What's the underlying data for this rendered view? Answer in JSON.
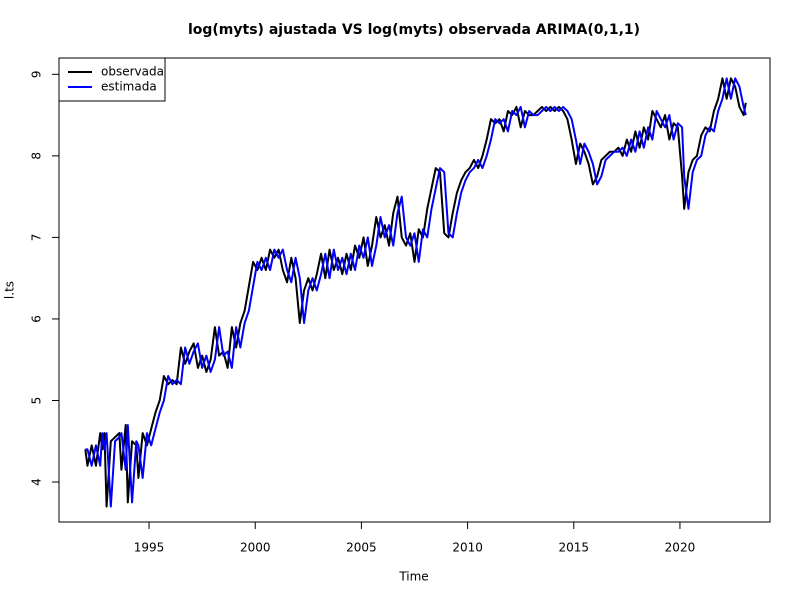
{
  "chart_data": {
    "type": "line",
    "title": "log(myts) ajustada VS log(myts) observada ARIMA(0,1,1)",
    "x_label": "Time",
    "y_label": "l.ts",
    "xlim": [
      1990.76,
      2024.24
    ],
    "ylim": [
      3.51,
      9.2
    ],
    "xticks": [
      1995,
      2000,
      2005,
      2010,
      2015,
      2020
    ],
    "yticks": [
      4,
      5,
      6,
      7,
      8,
      9
    ],
    "grid": false,
    "legend_position": "topleft",
    "x": [
      1992.0,
      1992.1,
      1992.3,
      1992.5,
      1992.7,
      1992.8,
      1992.9,
      1993.0,
      1993.2,
      1993.4,
      1993.6,
      1993.7,
      1993.9,
      1994.0,
      1994.2,
      1994.4,
      1994.5,
      1994.7,
      1994.9,
      1995.1,
      1995.3,
      1995.5,
      1995.7,
      1995.9,
      1996.1,
      1996.3,
      1996.5,
      1996.7,
      1996.9,
      1997.1,
      1997.3,
      1997.5,
      1997.7,
      1997.9,
      1998.1,
      1998.3,
      1998.5,
      1998.7,
      1998.9,
      1999.1,
      1999.3,
      1999.5,
      1999.7,
      1999.9,
      2000.1,
      2000.3,
      2000.5,
      2000.7,
      2000.9,
      2001.1,
      2001.3,
      2001.5,
      2001.7,
      2001.9,
      2002.1,
      2002.3,
      2002.5,
      2002.7,
      2002.9,
      2003.1,
      2003.3,
      2003.5,
      2003.7,
      2003.9,
      2004.1,
      2004.3,
      2004.5,
      2004.7,
      2004.9,
      2005.1,
      2005.3,
      2005.5,
      2005.7,
      2005.9,
      2006.1,
      2006.3,
      2006.5,
      2006.7,
      2006.9,
      2007.1,
      2007.3,
      2007.5,
      2007.7,
      2007.9,
      2008.1,
      2008.3,
      2008.5,
      2008.7,
      2008.9,
      2009.1,
      2009.3,
      2009.5,
      2009.7,
      2009.9,
      2010.1,
      2010.3,
      2010.5,
      2010.7,
      2010.9,
      2011.1,
      2011.3,
      2011.5,
      2011.7,
      2011.9,
      2012.1,
      2012.3,
      2012.5,
      2012.7,
      2012.9,
      2013.1,
      2013.3,
      2013.5,
      2013.7,
      2013.9,
      2014.1,
      2014.3,
      2014.5,
      2014.7,
      2014.9,
      2015.1,
      2015.3,
      2015.5,
      2015.7,
      2015.9,
      2016.1,
      2016.3,
      2016.5,
      2016.7,
      2016.9,
      2017.1,
      2017.3,
      2017.5,
      2017.7,
      2017.9,
      2018.1,
      2018.3,
      2018.5,
      2018.7,
      2018.9,
      2019.1,
      2019.3,
      2019.5,
      2019.7,
      2019.9,
      2020.1,
      2020.2,
      2020.4,
      2020.6,
      2020.8,
      2021.0,
      2021.2,
      2021.4,
      2021.6,
      2021.8,
      2022.0,
      2022.2,
      2022.4,
      2022.6,
      2022.8,
      2023.0,
      2023.1
    ],
    "series": [
      {
        "name": "observada",
        "color": "#000000",
        "values": [
          4.4,
          4.2,
          4.45,
          4.2,
          4.6,
          4.4,
          4.6,
          3.7,
          4.5,
          4.55,
          4.6,
          4.15,
          4.7,
          3.75,
          4.5,
          4.45,
          4.05,
          4.6,
          4.45,
          4.65,
          4.85,
          5.0,
          5.3,
          5.2,
          5.25,
          5.2,
          5.65,
          5.45,
          5.6,
          5.7,
          5.4,
          5.55,
          5.35,
          5.5,
          5.9,
          5.55,
          5.6,
          5.4,
          5.9,
          5.65,
          5.95,
          6.1,
          6.4,
          6.7,
          6.6,
          6.75,
          6.6,
          6.85,
          6.75,
          6.85,
          6.6,
          6.45,
          6.75,
          6.5,
          5.95,
          6.35,
          6.5,
          6.35,
          6.55,
          6.8,
          6.5,
          6.85,
          6.6,
          6.75,
          6.55,
          6.8,
          6.6,
          6.9,
          6.75,
          7.0,
          6.65,
          6.9,
          7.25,
          7.0,
          7.15,
          6.9,
          7.3,
          7.5,
          7.0,
          6.9,
          7.05,
          6.7,
          7.1,
          7.0,
          7.35,
          7.6,
          7.85,
          7.8,
          7.05,
          7.0,
          7.3,
          7.55,
          7.7,
          7.8,
          7.85,
          7.95,
          7.85,
          8.0,
          8.2,
          8.45,
          8.4,
          8.45,
          8.3,
          8.55,
          8.5,
          8.6,
          8.35,
          8.55,
          8.5,
          8.5,
          8.55,
          8.6,
          8.55,
          8.6,
          8.55,
          8.6,
          8.55,
          8.45,
          8.2,
          7.9,
          8.15,
          8.05,
          7.9,
          7.65,
          7.75,
          7.95,
          8.0,
          8.05,
          8.05,
          8.1,
          8.0,
          8.2,
          8.05,
          8.3,
          8.1,
          8.35,
          8.2,
          8.55,
          8.45,
          8.35,
          8.5,
          8.2,
          8.4,
          8.35,
          7.75,
          7.35,
          7.8,
          7.95,
          8.0,
          8.25,
          8.35,
          8.3,
          8.55,
          8.7,
          8.95,
          8.7,
          8.95,
          8.85,
          8.6,
          8.5,
          8.65
        ]
      },
      {
        "name": "estimada",
        "color": "#0000ff",
        "values": [
          4.4,
          4.4,
          4.2,
          4.45,
          4.2,
          4.6,
          4.4,
          4.6,
          3.7,
          4.5,
          4.55,
          4.6,
          4.15,
          4.7,
          3.75,
          4.5,
          4.45,
          4.05,
          4.6,
          4.45,
          4.65,
          4.85,
          5.0,
          5.3,
          5.2,
          5.25,
          5.2,
          5.65,
          5.45,
          5.6,
          5.7,
          5.4,
          5.55,
          5.35,
          5.5,
          5.9,
          5.55,
          5.6,
          5.4,
          5.9,
          5.65,
          5.95,
          6.1,
          6.4,
          6.7,
          6.6,
          6.75,
          6.6,
          6.85,
          6.75,
          6.85,
          6.6,
          6.45,
          6.75,
          6.5,
          5.95,
          6.35,
          6.5,
          6.35,
          6.55,
          6.8,
          6.5,
          6.85,
          6.6,
          6.75,
          6.55,
          6.8,
          6.6,
          6.9,
          6.75,
          7.0,
          6.65,
          6.9,
          7.25,
          7.0,
          7.15,
          6.9,
          7.3,
          7.5,
          7.0,
          6.9,
          7.05,
          6.7,
          7.1,
          7.0,
          7.35,
          7.6,
          7.85,
          7.8,
          7.05,
          7.0,
          7.3,
          7.55,
          7.7,
          7.8,
          7.85,
          7.95,
          7.85,
          8.0,
          8.2,
          8.45,
          8.4,
          8.45,
          8.3,
          8.55,
          8.5,
          8.6,
          8.35,
          8.55,
          8.5,
          8.5,
          8.55,
          8.6,
          8.55,
          8.6,
          8.55,
          8.6,
          8.55,
          8.45,
          8.2,
          7.9,
          8.15,
          8.05,
          7.9,
          7.65,
          7.75,
          7.95,
          8.0,
          8.05,
          8.05,
          8.1,
          8.0,
          8.2,
          8.05,
          8.3,
          8.1,
          8.35,
          8.2,
          8.55,
          8.45,
          8.35,
          8.5,
          8.2,
          8.4,
          8.35,
          7.75,
          7.35,
          7.8,
          7.95,
          8.0,
          8.25,
          8.35,
          8.3,
          8.55,
          8.7,
          8.95,
          8.7,
          8.95,
          8.85,
          8.6,
          8.5
        ]
      }
    ]
  }
}
